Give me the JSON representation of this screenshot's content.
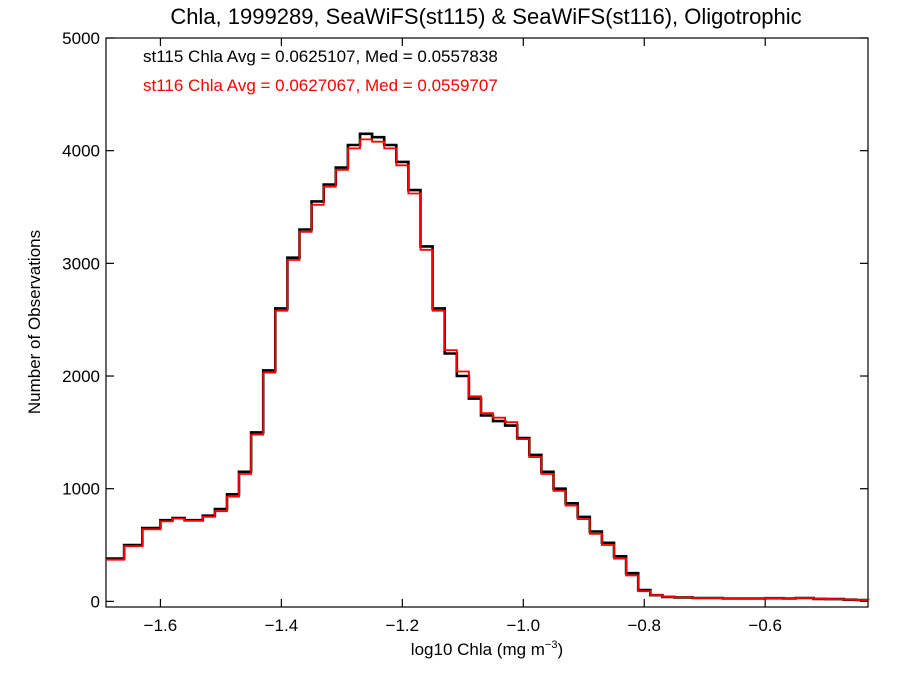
{
  "chart_data": {
    "type": "line",
    "title": "Chla, 1999289, SeaWiFS(st115) & SeaWiFS(st116), Oligotrophic",
    "xlabel_main": "log10 Chla (mg m",
    "xlabel_sup": "−3",
    "xlabel_close": ")",
    "ylabel": "Number of Observations",
    "xlim": [
      -1.69,
      -0.43
    ],
    "ylim": [
      -50,
      5000
    ],
    "x_ticks": [
      -1.6,
      -1.4,
      -1.2,
      -1.0,
      -0.8,
      -0.6
    ],
    "x_tick_labels": [
      "−1.6",
      "−1.4",
      "−1.2",
      "−1.0",
      "−0.8",
      "−0.6"
    ],
    "y_ticks": [
      0,
      1000,
      2000,
      3000,
      4000,
      5000
    ],
    "y_tick_labels": [
      "0",
      "1000",
      "2000",
      "3000",
      "4000",
      "5000"
    ],
    "grid": false,
    "annotations": [
      {
        "text": "st115 Chla Avg = 0.0625107, Med = 0.0557838",
        "color": "#000000"
      },
      {
        "text": "st116 Chla Avg = 0.0627067, Med = 0.0559707",
        "color": "#ff0000"
      }
    ],
    "series": [
      {
        "color": "#000000",
        "x": [
          -1.69,
          -1.66,
          -1.63,
          -1.6,
          -1.58,
          -1.56,
          -1.53,
          -1.51,
          -1.49,
          -1.47,
          -1.45,
          -1.43,
          -1.41,
          -1.39,
          -1.37,
          -1.35,
          -1.33,
          -1.31,
          -1.29,
          -1.27,
          -1.25,
          -1.23,
          -1.21,
          -1.19,
          -1.17,
          -1.15,
          -1.13,
          -1.11,
          -1.09,
          -1.07,
          -1.05,
          -1.03,
          -1.01,
          -0.99,
          -0.97,
          -0.95,
          -0.93,
          -0.91,
          -0.89,
          -0.87,
          -0.85,
          -0.83,
          -0.81,
          -0.79,
          -0.77,
          -0.75,
          -0.72,
          -0.7,
          -0.67,
          -0.65,
          -0.62,
          -0.6,
          -0.57,
          -0.55,
          -0.52,
          -0.5,
          -0.47,
          -0.45,
          -0.43
        ],
        "values": [
          380,
          500,
          650,
          720,
          740,
          720,
          760,
          820,
          950,
          1150,
          1500,
          2050,
          2600,
          3050,
          3300,
          3550,
          3700,
          3850,
          4050,
          4150,
          4120,
          4050,
          3900,
          3650,
          3150,
          2600,
          2200,
          2000,
          1800,
          1650,
          1600,
          1560,
          1450,
          1300,
          1150,
          1000,
          870,
          750,
          620,
          520,
          400,
          250,
          100,
          55,
          40,
          35,
          30,
          30,
          25,
          25,
          25,
          28,
          25,
          30,
          22,
          20,
          15,
          12,
          10
        ]
      },
      {
        "color": "#ff0000",
        "x": [
          -1.69,
          -1.66,
          -1.63,
          -1.6,
          -1.58,
          -1.56,
          -1.53,
          -1.51,
          -1.49,
          -1.47,
          -1.45,
          -1.43,
          -1.41,
          -1.39,
          -1.37,
          -1.35,
          -1.33,
          -1.31,
          -1.29,
          -1.27,
          -1.25,
          -1.23,
          -1.21,
          -1.19,
          -1.17,
          -1.15,
          -1.13,
          -1.11,
          -1.09,
          -1.07,
          -1.05,
          -1.03,
          -1.01,
          -0.99,
          -0.97,
          -0.95,
          -0.93,
          -0.91,
          -0.89,
          -0.87,
          -0.85,
          -0.83,
          -0.81,
          -0.79,
          -0.77,
          -0.75,
          -0.72,
          -0.7,
          -0.67,
          -0.65,
          -0.62,
          -0.6,
          -0.57,
          -0.55,
          -0.52,
          -0.5,
          -0.47,
          -0.45,
          -0.43
        ],
        "values": [
          370,
          490,
          640,
          710,
          735,
          715,
          750,
          800,
          930,
          1130,
          1480,
          2030,
          2580,
          3030,
          3280,
          3520,
          3680,
          3830,
          4020,
          4100,
          4080,
          4020,
          3870,
          3620,
          3120,
          2580,
          2230,
          2040,
          1820,
          1670,
          1630,
          1590,
          1440,
          1280,
          1130,
          980,
          850,
          730,
          600,
          500,
          380,
          230,
          90,
          55,
          40,
          35,
          30,
          30,
          25,
          25,
          25,
          28,
          25,
          30,
          22,
          20,
          15,
          12,
          10
        ]
      }
    ]
  }
}
